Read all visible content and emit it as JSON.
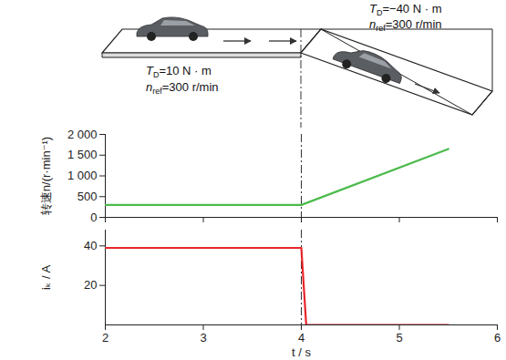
{
  "scene": {
    "flat": [
      {
        "symbol": "T",
        "sub": "D",
        "text": "=10 N · m"
      },
      {
        "symbol": "n",
        "sub": "ref",
        "text": "=300 r/min"
      }
    ],
    "slope": [
      {
        "symbol": "T",
        "sub": "D",
        "text": "=−40 N · m"
      },
      {
        "symbol": "n",
        "sub": "ref",
        "text": "=300 r/min"
      }
    ]
  },
  "chart_data": [
    {
      "type": "line",
      "ylabel": "转速n/(r·min⁻¹)",
      "x": [
        2,
        4,
        5.5
      ],
      "values": [
        300,
        300,
        1650
      ],
      "color": "#4cbb4c",
      "xlim": [
        2,
        6
      ],
      "xticks": [
        2,
        3,
        4,
        5,
        6
      ],
      "ylim": [
        0,
        2000
      ],
      "yticks": [
        0,
        500,
        {
          "value": 1000,
          "label": "1 000"
        },
        {
          "value": 1500,
          "label": "1 500"
        },
        {
          "value": 2000,
          "label": "2 000"
        }
      ],
      "tick_labels": "y",
      "event_x": 4
    },
    {
      "type": "line",
      "ylabel": "iₖ / A",
      "xlabel": "t / s",
      "x": [
        2,
        4,
        4.05,
        5.5
      ],
      "values": [
        39,
        39,
        0,
        0
      ],
      "color": "#e8262a",
      "xlim": [
        2,
        6
      ],
      "xticks": [
        2,
        3,
        4,
        5,
        6
      ],
      "ylim": [
        0,
        48
      ],
      "yticks": [
        20,
        40
      ],
      "event_x": 4
    }
  ]
}
